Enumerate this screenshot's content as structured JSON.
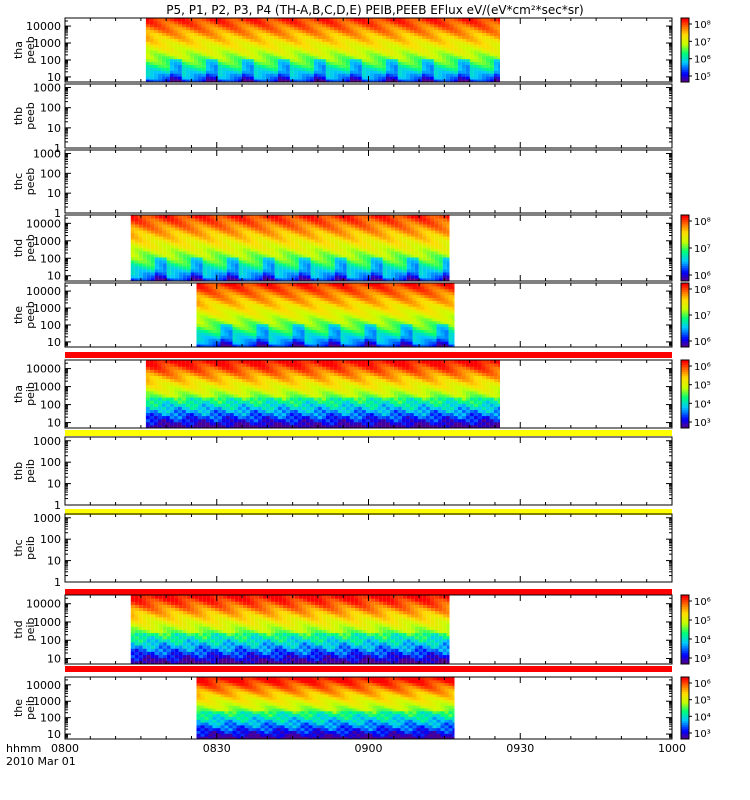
{
  "title": "P5, P1, P2, P3, P4 (TH-A,B,C,D,E) PEIB,PEEB EFlux eV/(eV*cm²*sec*sr)",
  "time_axis": {
    "label_line1": "hhmm",
    "label_line2": "2010 Mar 01",
    "tick_labels": [
      "0800",
      "0830",
      "0900",
      "0930",
      "1000"
    ],
    "range_minutes": [
      0,
      120
    ]
  },
  "chart_data": [
    {
      "type": "heatmap",
      "name": "tha-peeb",
      "ylabel": [
        "tha",
        "peeb"
      ],
      "y_ticks": [
        "10",
        "100",
        "1000",
        "10000"
      ],
      "ylim": [
        5,
        30000
      ],
      "log": true,
      "data_start_min": 16,
      "data_end_min": 86,
      "color_ticks": [
        "10⁵",
        "10⁶",
        "10⁷",
        "10⁸"
      ]
    },
    {
      "type": "heatmap",
      "name": "thb-peeb",
      "ylabel": [
        "thb",
        "peeb"
      ],
      "y_ticks": [
        "1",
        "10",
        "100",
        "1000"
      ],
      "ylim": [
        1,
        1500
      ],
      "log": true,
      "data_start_min": null,
      "data_end_min": null,
      "color_ticks": []
    },
    {
      "type": "heatmap",
      "name": "thc-peeb",
      "ylabel": [
        "thc",
        "peeb"
      ],
      "y_ticks": [
        "1",
        "10",
        "100",
        "1000"
      ],
      "ylim": [
        1,
        1500
      ],
      "log": true,
      "data_start_min": null,
      "data_end_min": null,
      "color_ticks": []
    },
    {
      "type": "heatmap",
      "name": "thd-peeb",
      "ylabel": [
        "thd",
        "peeb"
      ],
      "y_ticks": [
        "10",
        "100",
        "1000",
        "10000"
      ],
      "ylim": [
        5,
        30000
      ],
      "log": true,
      "data_start_min": 13,
      "data_end_min": 76,
      "color_ticks": [
        "10⁶",
        "10⁷",
        "10⁸"
      ]
    },
    {
      "type": "heatmap",
      "name": "the-peeb",
      "ylabel": [
        "the",
        "peeb"
      ],
      "y_ticks": [
        "10",
        "100",
        "1000",
        "10000"
      ],
      "ylim": [
        5,
        30000
      ],
      "log": true,
      "data_start_min": 26,
      "data_end_min": 77,
      "color_ticks": [
        "10⁶",
        "10⁷",
        "10⁸"
      ]
    },
    {
      "type": "heatmap",
      "name": "tha-peib",
      "ylabel": [
        "tha",
        "peib"
      ],
      "y_ticks": [
        "10",
        "100",
        "1000",
        "10000"
      ],
      "ylim": [
        5,
        30000
      ],
      "log": true,
      "data_start_min": 16,
      "data_end_min": 86,
      "color_ticks": [
        "10³",
        "10⁴",
        "10⁵",
        "10⁶"
      ]
    },
    {
      "type": "heatmap",
      "name": "thb-peib",
      "ylabel": [
        "thb",
        "peib"
      ],
      "y_ticks": [
        "1",
        "10",
        "100",
        "1000"
      ],
      "ylim": [
        1,
        1500
      ],
      "log": true,
      "data_start_min": null,
      "data_end_min": null,
      "color_ticks": []
    },
    {
      "type": "heatmap",
      "name": "thc-peib",
      "ylabel": [
        "thc",
        "peib"
      ],
      "y_ticks": [
        "1",
        "10",
        "100",
        "1000"
      ],
      "ylim": [
        1,
        1500
      ],
      "log": true,
      "data_start_min": null,
      "data_end_min": null,
      "color_ticks": []
    },
    {
      "type": "heatmap",
      "name": "thd-peib",
      "ylabel": [
        "thd",
        "peib"
      ],
      "y_ticks": [
        "10",
        "100",
        "1000",
        "10000"
      ],
      "ylim": [
        5,
        30000
      ],
      "log": true,
      "data_start_min": 13,
      "data_end_min": 76,
      "color_ticks": [
        "10³",
        "10⁴",
        "10⁵",
        "10⁶"
      ]
    },
    {
      "type": "heatmap",
      "name": "the-peib",
      "ylabel": [
        "the",
        "peib"
      ],
      "y_ticks": [
        "10",
        "100",
        "1000",
        "10000"
      ],
      "ylim": [
        5,
        30000
      ],
      "log": true,
      "data_start_min": 26,
      "data_end_min": 77,
      "color_ticks": [
        "10³",
        "10⁴",
        "10⁵",
        "10⁶"
      ]
    }
  ],
  "status_bars": [
    {
      "after_panel": 4,
      "color": "#ff0000"
    },
    {
      "after_panel": 5,
      "color": "#ffff00"
    },
    {
      "after_panel": 6,
      "color": "#ffff00"
    },
    {
      "after_panel": 7,
      "color": "#ff0000"
    },
    {
      "after_panel": 8,
      "color": "#ff0000"
    }
  ]
}
